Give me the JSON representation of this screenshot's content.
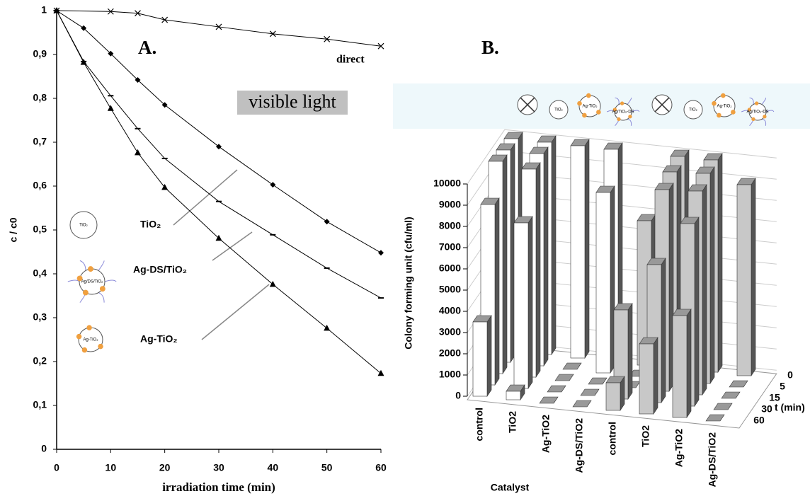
{
  "chart_data": [
    {
      "type": "line",
      "panel_label": "A.",
      "annotation": "visible light",
      "xlabel": "irradiation time (min)",
      "ylabel": "c / c0",
      "xlim": [
        0,
        60
      ],
      "xticks": [
        0,
        10,
        20,
        30,
        40,
        50,
        60
      ],
      "ylim": [
        0,
        1
      ],
      "yticks": [
        0,
        {
          "value": 0.1,
          "label": "0,1"
        },
        {
          "value": 0.2,
          "label": "0,2"
        },
        {
          "value": 0.3,
          "label": "0,3"
        },
        {
          "value": 0.4,
          "label": "0,4"
        },
        {
          "value": 0.5,
          "label": "0,5"
        },
        {
          "value": 0.6,
          "label": "0,6"
        },
        {
          "value": 0.7,
          "label": "0,7"
        },
        {
          "value": 0.8,
          "label": "0,8"
        },
        {
          "value": 0.9,
          "label": "0,9"
        },
        1
      ],
      "series": [
        {
          "name": "direct",
          "color": "#000000",
          "marker": "x",
          "x": [
            0,
            10,
            15,
            20,
            30,
            40,
            50,
            60
          ],
          "values": [
            1.0,
            0.998,
            0.994,
            0.979,
            0.963,
            0.947,
            0.935,
            0.919
          ]
        },
        {
          "name": "TiO₂",
          "color": "#000000",
          "marker": "diamond",
          "x": [
            0,
            5,
            10,
            15,
            20,
            30,
            40,
            50,
            60
          ],
          "values": [
            1.0,
            0.96,
            0.902,
            0.842,
            0.785,
            0.69,
            0.603,
            0.519,
            0.448
          ]
        },
        {
          "name": "Ag-DS/TiO₂",
          "color": "#000000",
          "marker": "dash",
          "x": [
            0,
            5,
            10,
            15,
            20,
            30,
            40,
            50,
            60
          ],
          "values": [
            1.0,
            0.884,
            0.806,
            0.731,
            0.663,
            0.565,
            0.489,
            0.413,
            0.345
          ]
        },
        {
          "name": "Ag-TiO₂",
          "color": "#000000",
          "marker": "triangle",
          "x": [
            0,
            5,
            10,
            15,
            20,
            30,
            40,
            50,
            60
          ],
          "values": [
            1.0,
            0.882,
            0.777,
            0.676,
            0.597,
            0.481,
            0.376,
            0.276,
            0.173
          ]
        }
      ],
      "icon_labels": [
        "TiO₂",
        "Ag/DS/TiO₂",
        "Ag-TiO₂"
      ]
    },
    {
      "type": "bar3d",
      "panel_label": "B.",
      "ylabel": "Colony forming unit (cfu/ml)",
      "xlabel": "Catalyst",
      "zlabel": "t (min)",
      "categories": [
        "control",
        "TiO2",
        "Ag-TiO2",
        "Ag-DS/TiO2",
        "control",
        "TiO2",
        "Ag-TiO2",
        "Ag-DS/TiO2"
      ],
      "category_colors": [
        "#ffffff",
        "#ffffff",
        "#ffffff",
        "#ffffff",
        "#c8c8c8",
        "#c8c8c8",
        "#c8c8c8",
        "#c8c8c8"
      ],
      "ylim": [
        0,
        10000
      ],
      "yticks": [
        0,
        1000,
        2000,
        3000,
        4000,
        5000,
        6000,
        7000,
        8000,
        9000,
        10000
      ],
      "grid": true,
      "series": [
        {
          "name": "0",
          "values": [
            10000,
            10000,
            10000,
            10000,
            6800,
            10000,
            10000,
            9000
          ]
        },
        {
          "name": "5",
          "values": [
            10000,
            10000,
            0,
            8500,
            0,
            9800,
            9900,
            0
          ]
        },
        {
          "name": "15",
          "values": [
            10000,
            9800,
            0,
            0,
            0,
            9500,
            9600,
            0
          ]
        },
        {
          "name": "30",
          "values": [
            8500,
            7800,
            0,
            0,
            4200,
            6500,
            8600,
            0
          ]
        },
        {
          "name": "60",
          "values": [
            3500,
            400,
            0,
            0,
            1300,
            3300,
            4800,
            0
          ]
        }
      ],
      "icon_labels": [
        "TiO₂",
        "Ag-TiO₂",
        "Ag/TiO₂-DS"
      ]
    }
  ]
}
